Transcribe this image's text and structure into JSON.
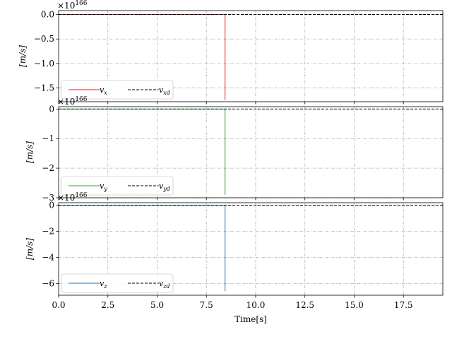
{
  "chart_data": [
    {
      "type": "line",
      "ylabel": "[m/s]",
      "offset_text": "×10^166",
      "ylim": [
        -1.78,
        0.08
      ],
      "xlim": [
        0,
        19.5
      ],
      "yticks": [
        0.0,
        -0.5,
        -1.0,
        -1.5
      ],
      "ytick_labels": [
        "0.0",
        "−0.5",
        "−1.0",
        "−1.5"
      ],
      "grid": true,
      "legend": "lower-left",
      "series": [
        {
          "name": "v_x",
          "label": "v",
          "sub": "x",
          "color": "#d62728",
          "dash": "solid",
          "x": [
            0,
            8.45,
            8.45,
            8.45
          ],
          "y": [
            0,
            0,
            0,
            -1.75
          ]
        },
        {
          "name": "v_xd",
          "label": "v",
          "sub": "xd",
          "color": "#000000",
          "dash": "dashed",
          "x": [
            0,
            19.5
          ],
          "y": [
            0,
            0
          ]
        }
      ]
    },
    {
      "type": "line",
      "ylabel": "[m/s]",
      "offset_text": "×10^166",
      "ylim": [
        -3.0,
        0.08
      ],
      "xlim": [
        0,
        19.5
      ],
      "yticks": [
        0,
        -1,
        -2,
        -3
      ],
      "ytick_labels": [
        "0",
        "−1",
        "−2",
        "−3"
      ],
      "grid": true,
      "legend": "lower-left",
      "series": [
        {
          "name": "v_y",
          "label": "v",
          "sub": "y",
          "color": "#2ca02c",
          "dash": "solid",
          "x": [
            0,
            8.45,
            8.45,
            8.45
          ],
          "y": [
            0,
            0,
            0,
            -2.9
          ]
        },
        {
          "name": "v_yd",
          "label": "v",
          "sub": "yd",
          "color": "#000000",
          "dash": "dashed",
          "x": [
            0,
            19.5
          ],
          "y": [
            0,
            0
          ]
        }
      ]
    },
    {
      "type": "line",
      "ylabel": "[m/s]",
      "offset_text": "×10^166",
      "ylim": [
        -6.9,
        0.2
      ],
      "xlim": [
        0,
        19.5
      ],
      "yticks": [
        0,
        -2,
        -4,
        -6
      ],
      "ytick_labels": [
        "0",
        "−2",
        "−4",
        "−6"
      ],
      "xticks": [
        0,
        2.5,
        5,
        7.5,
        10,
        12.5,
        15,
        17.5
      ],
      "xtick_labels": [
        "0.0",
        "2.5",
        "5.0",
        "7.5",
        "10.0",
        "12.5",
        "15.0",
        "17.5"
      ],
      "xlabel": "Time[s]",
      "grid": true,
      "legend": "lower-left",
      "series": [
        {
          "name": "v_z",
          "label": "v",
          "sub": "z",
          "color": "#1f77b4",
          "dash": "solid",
          "x": [
            0,
            8.45,
            8.45,
            8.45
          ],
          "y": [
            0,
            0,
            0,
            -6.6
          ]
        },
        {
          "name": "v_zd",
          "label": "v",
          "sub": "zd",
          "color": "#000000",
          "dash": "dashed",
          "x": [
            0,
            19.5
          ],
          "y": [
            0,
            0
          ]
        }
      ]
    }
  ]
}
